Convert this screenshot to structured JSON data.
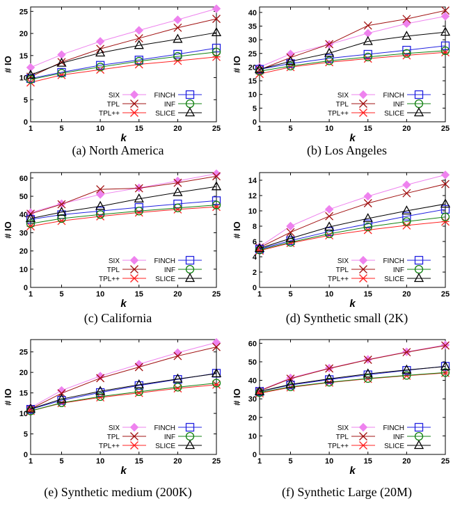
{
  "series_styles": [
    {
      "key": "six",
      "color": "#ee82ee",
      "marker": "diamond"
    },
    {
      "key": "tpl",
      "color": "#a01010",
      "marker": "x"
    },
    {
      "key": "tplpp",
      "color": "#ff2020",
      "marker": "asterisk"
    },
    {
      "key": "finch",
      "color": "#2020e0",
      "marker": "square"
    },
    {
      "key": "inf",
      "color": "#108010",
      "marker": "circle"
    },
    {
      "key": "slice",
      "color": "#000000",
      "marker": "triangle"
    }
  ],
  "chart_data": [
    {
      "type": "line",
      "caption": "(a) North America",
      "xlabel": "k",
      "ylabel": "# IO",
      "x": [
        1,
        5,
        10,
        15,
        20,
        25
      ],
      "x_ticks": [
        1,
        5,
        10,
        15,
        20,
        25
      ],
      "ylim": [
        0,
        26
      ],
      "y_ticks": [
        0,
        5,
        10,
        15,
        20,
        25
      ],
      "series": [
        {
          "name": "SIX",
          "values": [
            12.3,
            15.2,
            18.2,
            20.7,
            23.1,
            25.6
          ]
        },
        {
          "name": "TPL",
          "values": [
            10.2,
            13.5,
            16.5,
            18.9,
            21.3,
            23.3
          ]
        },
        {
          "name": "TPL++",
          "values": [
            8.9,
            10.6,
            11.8,
            13.0,
            13.8,
            14.7
          ]
        },
        {
          "name": "FINCH",
          "values": [
            9.8,
            11.2,
            12.8,
            14.0,
            15.3,
            16.7
          ]
        },
        {
          "name": "INF",
          "values": [
            9.6,
            11.0,
            12.4,
            13.7,
            14.8,
            15.8
          ]
        },
        {
          "name": "SLICE",
          "values": [
            10.6,
            13.3,
            15.6,
            17.3,
            18.7,
            20.2
          ]
        }
      ],
      "legend": "bottom-right",
      "grid": false
    },
    {
      "type": "line",
      "caption": "(b) Los Angeles",
      "xlabel": "k",
      "ylabel": "# IO",
      "x": [
        1,
        5,
        10,
        15,
        20,
        25
      ],
      "x_ticks": [
        1,
        5,
        10,
        15,
        20,
        25
      ],
      "ylim": [
        0,
        42
      ],
      "y_ticks": [
        0,
        5,
        10,
        15,
        20,
        25,
        30,
        35,
        40
      ],
      "series": [
        {
          "name": "SIX",
          "values": [
            20.0,
            24.8,
            28.3,
            32.4,
            35.9,
            38.6
          ]
        },
        {
          "name": "TPL",
          "values": [
            19.0,
            23.5,
            28.4,
            35.2,
            37.6,
            40.7
          ]
        },
        {
          "name": "TPL++",
          "values": [
            17.5,
            20.0,
            21.8,
            23.1,
            24.3,
            25.4
          ]
        },
        {
          "name": "FINCH",
          "values": [
            19.2,
            21.3,
            23.2,
            24.7,
            26.2,
            27.8
          ]
        },
        {
          "name": "INF",
          "values": [
            18.5,
            20.4,
            22.3,
            23.7,
            25.0,
            26.0
          ]
        },
        {
          "name": "SLICE",
          "values": [
            19.2,
            22.1,
            25.1,
            29.4,
            31.3,
            32.8
          ]
        }
      ],
      "legend": "bottom-right",
      "grid": false
    },
    {
      "type": "line",
      "caption": "(c) California",
      "xlabel": "k",
      "ylabel": "# IO",
      "x": [
        1,
        5,
        10,
        15,
        20,
        25
      ],
      "x_ticks": [
        1,
        5,
        10,
        15,
        20,
        25
      ],
      "ylim": [
        0,
        63
      ],
      "y_ticks": [
        0,
        10,
        20,
        30,
        40,
        50,
        60
      ],
      "series": [
        {
          "name": "SIX",
          "values": [
            41.0,
            45.9,
            51.0,
            54.6,
            58.4,
            62.4
          ]
        },
        {
          "name": "TPL",
          "values": [
            40.4,
            45.6,
            53.8,
            54.4,
            57.4,
            61.0
          ]
        },
        {
          "name": "TPL++",
          "values": [
            33.5,
            36.5,
            39.0,
            41.1,
            42.8,
            44.2
          ]
        },
        {
          "name": "FINCH",
          "values": [
            37.3,
            39.9,
            41.9,
            43.9,
            45.8,
            47.6
          ]
        },
        {
          "name": "INF",
          "values": [
            35.0,
            37.8,
            40.0,
            41.9,
            43.6,
            45.2
          ]
        },
        {
          "name": "SLICE",
          "values": [
            37.8,
            41.3,
            44.5,
            48.6,
            52.1,
            55.3
          ]
        }
      ],
      "legend": "bottom-right",
      "grid": false
    },
    {
      "type": "line",
      "caption": "(d) Synthetic small (2K)",
      "xlabel": "k",
      "ylabel": "# IO",
      "x": [
        1,
        5,
        10,
        15,
        20,
        25
      ],
      "x_ticks": [
        1,
        5,
        10,
        15,
        20,
        25
      ],
      "ylim": [
        0,
        15
      ],
      "y_ticks": [
        0,
        2,
        4,
        6,
        8,
        10,
        12,
        14
      ],
      "series": [
        {
          "name": "SIX",
          "values": [
            5.3,
            8.0,
            10.2,
            11.9,
            13.4,
            14.7
          ]
        },
        {
          "name": "TPL",
          "values": [
            5.2,
            7.2,
            9.3,
            11.0,
            12.3,
            13.5
          ]
        },
        {
          "name": "TPL++",
          "values": [
            4.8,
            5.8,
            6.8,
            7.5,
            8.1,
            8.6
          ]
        },
        {
          "name": "FINCH",
          "values": [
            5.0,
            6.1,
            7.3,
            8.3,
            9.3,
            10.2
          ]
        },
        {
          "name": "INF",
          "values": [
            4.9,
            5.9,
            7.0,
            7.9,
            8.6,
            9.2
          ]
        },
        {
          "name": "SLICE",
          "values": [
            5.1,
            6.4,
            7.9,
            9.0,
            10.0,
            10.9
          ]
        }
      ],
      "legend": "bottom-right",
      "grid": false
    },
    {
      "type": "line",
      "caption": "(e) Synthetic medium (200K)",
      "xlabel": "k",
      "ylabel": "# IO",
      "x": [
        1,
        5,
        10,
        15,
        20,
        25
      ],
      "x_ticks": [
        1,
        5,
        10,
        15,
        20,
        25
      ],
      "ylim": [
        0,
        28
      ],
      "y_ticks": [
        0,
        5,
        10,
        15,
        20,
        25
      ],
      "series": [
        {
          "name": "SIX",
          "values": [
            11.4,
            15.6,
            19.1,
            22.0,
            24.8,
            27.3
          ]
        },
        {
          "name": "TPL",
          "values": [
            11.1,
            14.9,
            18.6,
            21.3,
            24.0,
            26.2
          ]
        },
        {
          "name": "TPL++",
          "values": [
            10.6,
            12.5,
            13.9,
            15.0,
            16.1,
            17.0
          ]
        },
        {
          "name": "FINCH",
          "values": [
            11.0,
            13.2,
            15.1,
            16.8,
            18.3,
            19.8
          ]
        },
        {
          "name": "INF",
          "values": [
            10.6,
            12.6,
            14.1,
            15.3,
            16.4,
            17.4
          ]
        },
        {
          "name": "SLICE",
          "values": [
            11.1,
            13.5,
            15.4,
            17.0,
            18.4,
            19.7
          ]
        }
      ],
      "legend": "bottom-right",
      "grid": false
    },
    {
      "type": "line",
      "caption": "(f) Synthetic Large (20M)",
      "xlabel": "k",
      "ylabel": "# IO",
      "x": [
        1,
        5,
        10,
        15,
        20,
        25
      ],
      "x_ticks": [
        1,
        5,
        10,
        15,
        20,
        25
      ],
      "ylim": [
        0,
        62
      ],
      "y_ticks": [
        0,
        10,
        20,
        30,
        40,
        50,
        60
      ],
      "series": [
        {
          "name": "SIX",
          "values": [
            34.5,
            41.3,
            46.6,
            51.3,
            55.4,
            59.1
          ]
        },
        {
          "name": "TPL",
          "values": [
            34.3,
            40.9,
            46.4,
            51.1,
            55.2,
            58.8
          ]
        },
        {
          "name": "TPL++",
          "values": [
            33.0,
            36.2,
            38.8,
            40.8,
            42.5,
            44.0
          ]
        },
        {
          "name": "FINCH",
          "values": [
            34.0,
            37.5,
            40.4,
            43.0,
            45.4,
            47.6
          ]
        },
        {
          "name": "INF",
          "values": [
            33.4,
            36.5,
            39.0,
            41.0,
            42.7,
            44.2
          ]
        },
        {
          "name": "SLICE",
          "values": [
            34.0,
            37.8,
            40.8,
            43.5,
            45.6,
            47.5
          ]
        }
      ],
      "legend": "bottom-right",
      "grid": false
    }
  ]
}
